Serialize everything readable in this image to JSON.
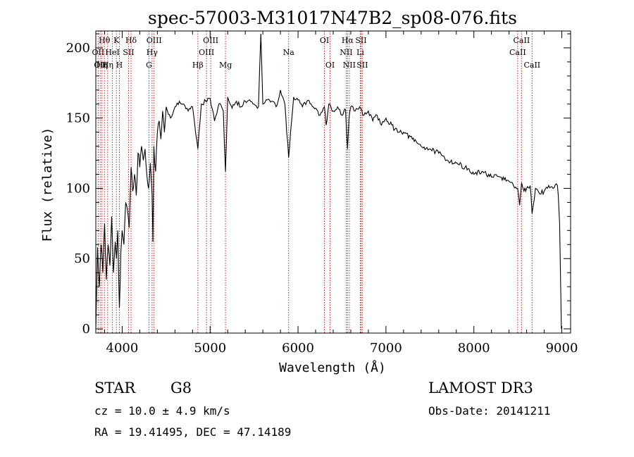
{
  "chart_data": {
    "type": "line",
    "title": "spec-57003-M31017N47B2_sp08-076.fits",
    "xlabel": "Wavelength (Å)",
    "ylabel": "Flux (relative)",
    "xlim": [
      3700,
      9100
    ],
    "ylim": [
      -3,
      212
    ],
    "xticks": [
      4000,
      5000,
      6000,
      7000,
      8000,
      9000
    ],
    "yticks": [
      0,
      50,
      100,
      150,
      200
    ],
    "x_minor_step": 200,
    "y_minor_step": 10,
    "series": [
      {
        "name": "flux",
        "x": [
          3700,
          3720,
          3740,
          3760,
          3780,
          3800,
          3820,
          3840,
          3860,
          3880,
          3900,
          3920,
          3935,
          3950,
          3968,
          3985,
          4000,
          4020,
          4040,
          4060,
          4080,
          4101,
          4120,
          4140,
          4160,
          4180,
          4200,
          4220,
          4240,
          4260,
          4280,
          4300,
          4320,
          4340,
          4350,
          4360,
          4380,
          4400,
          4420,
          4440,
          4460,
          4480,
          4500,
          4550,
          4600,
          4650,
          4700,
          4750,
          4800,
          4861,
          4900,
          4950,
          5000,
          5050,
          5100,
          5150,
          5175,
          5200,
          5250,
          5300,
          5350,
          5400,
          5450,
          5500,
          5550,
          5577,
          5600,
          5650,
          5700,
          5750,
          5800,
          5850,
          5893,
          5950,
          6000,
          6050,
          6100,
          6150,
          6200,
          6250,
          6300,
          6320,
          6350,
          6400,
          6450,
          6500,
          6540,
          6563,
          6580,
          6600,
          6650,
          6700,
          6750,
          6800,
          6850,
          6900,
          6950,
          7000,
          7100,
          7200,
          7300,
          7400,
          7500,
          7600,
          7700,
          7800,
          7900,
          8000,
          8100,
          8200,
          8300,
          8400,
          8450,
          8498,
          8520,
          8542,
          8570,
          8600,
          8640,
          8662,
          8700,
          8750,
          8800,
          8850,
          8900,
          8950,
          8960,
          8975,
          8985,
          8995
        ],
        "values": [
          0,
          58,
          30,
          60,
          40,
          75,
          35,
          60,
          45,
          80,
          40,
          62,
          50,
          70,
          15,
          55,
          70,
          60,
          90,
          85,
          72,
          115,
          98,
          110,
          95,
          125,
          115,
          130,
          120,
          128,
          110,
          100,
          118,
          95,
          62,
          130,
          112,
          140,
          148,
          135,
          155,
          140,
          158,
          150,
          158,
          162,
          160,
          155,
          158,
          128,
          160,
          162,
          164,
          148,
          160,
          155,
          112,
          165,
          157,
          162,
          158,
          162,
          163,
          160,
          158,
          210,
          160,
          163,
          162,
          158,
          170,
          160,
          122,
          165,
          163,
          158,
          162,
          160,
          157,
          152,
          158,
          145,
          160,
          155,
          158,
          152,
          156,
          128,
          150,
          158,
          155,
          158,
          152,
          155,
          148,
          152,
          145,
          150,
          142,
          140,
          135,
          130,
          128,
          125,
          120,
          118,
          115,
          110,
          112,
          108,
          108,
          105,
          102,
          100,
          88,
          104,
          98,
          100,
          102,
          82,
          100,
          96,
          98,
          102,
          100,
          102,
          95,
          75,
          40,
          0
        ]
      }
    ],
    "lines": [
      {
        "w": 3727,
        "label": "OII",
        "row": 1
      },
      {
        "w": 3750,
        "label": "OII",
        "row": 2
      },
      {
        "w": 3770,
        "label": "Hη",
        "row": 2
      },
      {
        "w": 3798,
        "label": "Hθ",
        "row": 0
      },
      {
        "w": 3835,
        "label": "Hη",
        "row": 2
      },
      {
        "w": 3889,
        "label": "HeI",
        "row": 1
      },
      {
        "w": 3934,
        "label": "K",
        "row": 0
      },
      {
        "w": 3968,
        "label": "H",
        "row": 2
      },
      {
        "w": 4072,
        "label": "SII",
        "row": 1
      },
      {
        "w": 4101,
        "label": "Hδ",
        "row": 0
      },
      {
        "w": 4305,
        "label": "G",
        "row": 2
      },
      {
        "w": 4340,
        "label": "Hγ",
        "row": 1
      },
      {
        "w": 4363,
        "label": "OIII",
        "row": 0
      },
      {
        "w": 4861,
        "label": "Hβ",
        "row": 2
      },
      {
        "w": 4959,
        "label": "OIII",
        "row": 1
      },
      {
        "w": 5007,
        "label": "OIII",
        "row": 0
      },
      {
        "w": 5175,
        "label": "Mg",
        "row": 2
      },
      {
        "w": 5893,
        "label": "Na",
        "row": 1
      },
      {
        "w": 6300,
        "label": "OI",
        "row": 0
      },
      {
        "w": 6364,
        "label": "OI",
        "row": 2
      },
      {
        "w": 6548,
        "label": "NII",
        "row": 1
      },
      {
        "w": 6563,
        "label": "Hα",
        "row": 0
      },
      {
        "w": 6583,
        "label": "NII",
        "row": 2
      },
      {
        "w": 6708,
        "label": "Li",
        "row": 1
      },
      {
        "w": 6716,
        "label": "SII",
        "row": 0
      },
      {
        "w": 6731,
        "label": "SII",
        "row": 2
      },
      {
        "w": 8498,
        "label": "CaII",
        "row": 1
      },
      {
        "w": 8542,
        "label": "CaII",
        "row": 0
      },
      {
        "w": 8662,
        "label": "CaII",
        "row": 2
      }
    ]
  },
  "info": {
    "class_label": "STAR",
    "subclass": "G8",
    "cz_text": "cz = 10.0 ± 4.9 km/s",
    "coords_text": "RA =  19.41495, DEC =  47.14189",
    "survey": "LAMOST DR3",
    "obs_date": "Obs-Date: 20141211"
  },
  "colors": {
    "line_marker": "#cc2222",
    "spectrum": "#000000",
    "axes": "#000000"
  }
}
